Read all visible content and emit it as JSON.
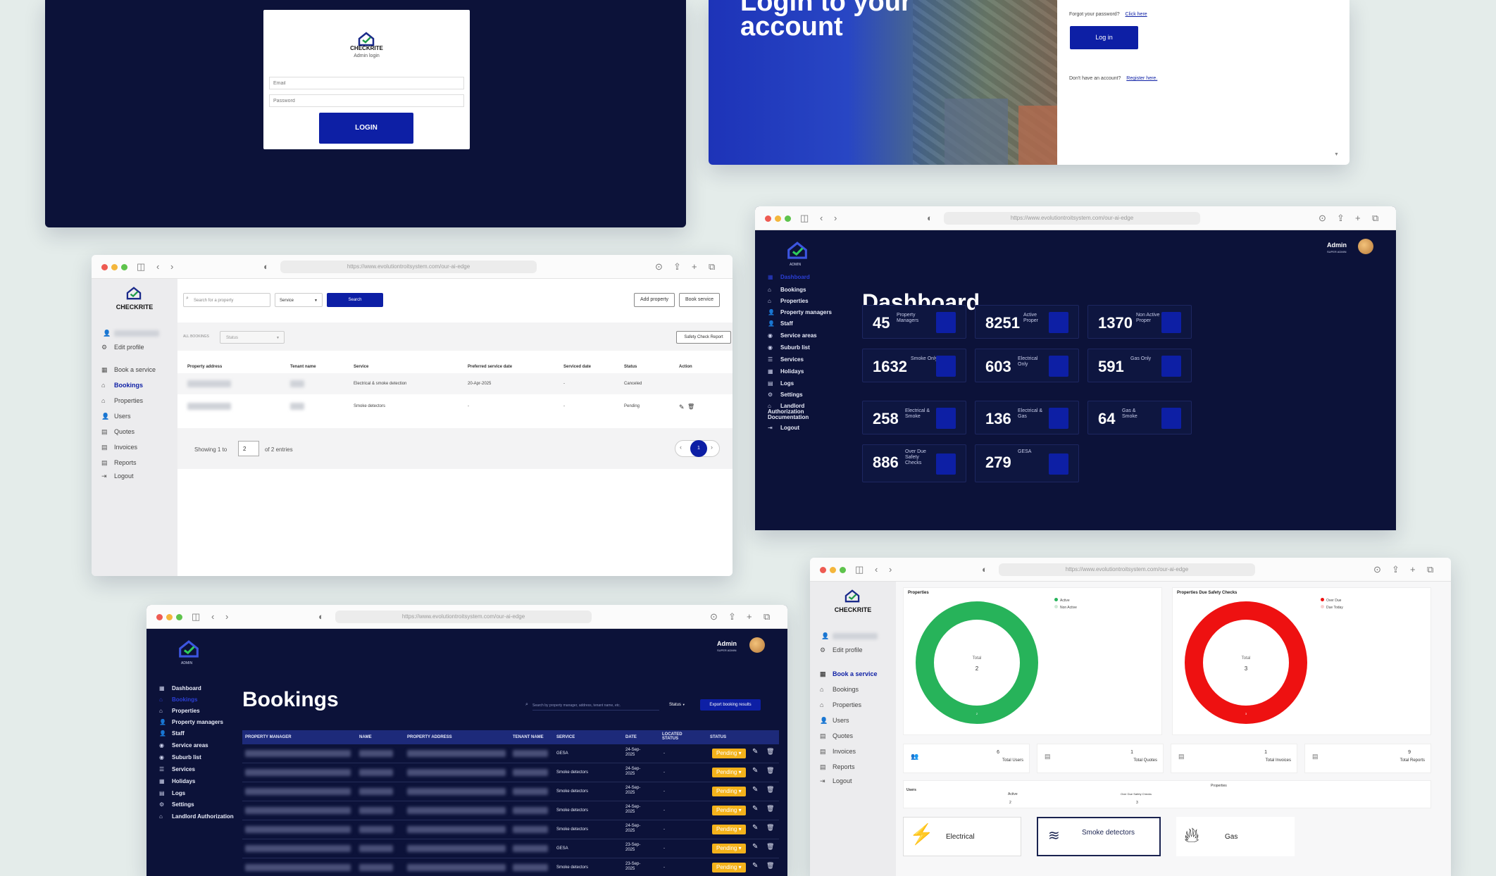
{
  "admin_login": {
    "brand": "CHECKRITE",
    "subtitle": "Admin login",
    "email_placeholder": "Email",
    "password_placeholder": "Password",
    "login_button": "LOGIN"
  },
  "user_login": {
    "headline_line1": "Login to your",
    "headline_line2": "account",
    "forgot_text": "Forgot your password?",
    "forgot_link": "Click here",
    "login_button": "Log in",
    "register_text": "Don't have an account?",
    "register_link": "Register here."
  },
  "dashboard": {
    "url": "https://www.evolutiontroitsystem.com/our-ai-edge",
    "admin_label": "ADMIN",
    "user_name": "Admin",
    "user_role": "SUPER ADMIN",
    "title": "Dashboard",
    "nav": [
      {
        "label": "Dashboard",
        "icon": "calendar-icon"
      },
      {
        "label": "Bookings",
        "icon": "house-icon"
      },
      {
        "label": "Properties",
        "icon": "house-icon"
      },
      {
        "label": "Property managers",
        "icon": "user-icon"
      },
      {
        "label": "Staff",
        "icon": "user-icon"
      },
      {
        "label": "Service areas",
        "icon": "location-icon"
      },
      {
        "label": "Suburb list",
        "icon": "location-icon"
      },
      {
        "label": "Services",
        "icon": "list-icon"
      },
      {
        "label": "Holidays",
        "icon": "calendar-icon"
      },
      {
        "label": "Logs",
        "icon": "document-icon"
      },
      {
        "label": "Settings",
        "icon": "gear-icon"
      },
      {
        "label": "Landlord Authorization Documentation",
        "icon": "house-icon"
      },
      {
        "label": "Logout",
        "icon": "logout-icon"
      }
    ],
    "stats": [
      {
        "value": "45",
        "label": "Property Managers"
      },
      {
        "value": "8251",
        "label": "Active Proper"
      },
      {
        "value": "1370",
        "label": "Non Active Proper"
      },
      {
        "value": "1632",
        "label": "Smoke Only"
      },
      {
        "value": "603",
        "label": "Electrical Only"
      },
      {
        "value": "591",
        "label": "Gas Only"
      },
      {
        "value": "258",
        "label": "Electrical & Smoke"
      },
      {
        "value": "136",
        "label": "Electrical & Gas"
      },
      {
        "value": "64",
        "label": "Gas & Smoke"
      },
      {
        "value": "886",
        "label": "Over Due Safety Checks"
      },
      {
        "value": "279",
        "label": "GESA"
      }
    ]
  },
  "properties_page": {
    "url": "https://www.evolutiontroitsystem.com/our-ai-edge",
    "brand": "CHECKRITE",
    "nav": [
      {
        "label": "Edit profile",
        "icon": "gear-icon"
      },
      {
        "label": "Book a service",
        "icon": "calendar-icon"
      },
      {
        "label": "Bookings",
        "icon": "house-icon"
      },
      {
        "label": "Properties",
        "icon": "house-icon"
      },
      {
        "label": "Users",
        "icon": "user-icon"
      },
      {
        "label": "Quotes",
        "icon": "document-icon"
      },
      {
        "label": "Invoices",
        "icon": "document-icon"
      },
      {
        "label": "Reports",
        "icon": "document-icon"
      },
      {
        "label": "Logout",
        "icon": "logout-icon"
      }
    ],
    "search_placeholder": "Search for a property",
    "service_select": "Service",
    "search_button": "Search",
    "add_property": "Add property",
    "book_service": "Book service",
    "all_bookings": "ALL BOOKINGS",
    "status_select": "Status",
    "safety_report": "Safety Check Report",
    "columns": [
      "Property address",
      "Tenant name",
      "Service",
      "Preferred service date",
      "Serviced date",
      "Status",
      "Action"
    ],
    "rows": [
      {
        "service": "Electrical & smoke detection",
        "preferred": "20-Apr-2025",
        "serviced": "-",
        "status": "Canceled"
      },
      {
        "service": "Smoke detectors",
        "preferred": "-",
        "serviced": "-",
        "status": "Pending"
      }
    ],
    "showing_prefix": "Showing 1 to",
    "showing_value": "2",
    "showing_suffix": "of 2 entries",
    "page": "1"
  },
  "bookings_page": {
    "url": "https://www.evolutiontroitsystem.com/our-ai-edge",
    "admin_label": "ADMIN",
    "user_name": "Admin",
    "user_role": "SUPER ADMIN",
    "title": "Bookings",
    "search_placeholder": "Search by property manager, address, tenant name, etc.",
    "status_select": "Status",
    "export_button": "Export booking results",
    "nav": [
      {
        "label": "Dashboard",
        "icon": "calendar-icon"
      },
      {
        "label": "Bookings",
        "icon": "house-icon"
      },
      {
        "label": "Properties",
        "icon": "house-icon"
      },
      {
        "label": "Property managers",
        "icon": "user-icon"
      },
      {
        "label": "Staff",
        "icon": "user-icon"
      },
      {
        "label": "Service areas",
        "icon": "location-icon"
      },
      {
        "label": "Suburb list",
        "icon": "location-icon"
      },
      {
        "label": "Services",
        "icon": "list-icon"
      },
      {
        "label": "Holidays",
        "icon": "calendar-icon"
      },
      {
        "label": "Logs",
        "icon": "document-icon"
      },
      {
        "label": "Settings",
        "icon": "gear-icon"
      },
      {
        "label": "Landlord Authorization",
        "icon": "house-icon"
      }
    ],
    "columns": [
      "PROPERTY MANAGER",
      "NAME",
      "PROPERTY ADDRESS",
      "TENANT NAME",
      "SERVICE",
      "DATE",
      "LOCATED STATUS",
      "STATUS"
    ],
    "rows": [
      {
        "service": "GESA",
        "date": "24-Sep-2025",
        "located": "-",
        "status": "Pending"
      },
      {
        "service": "Smoke detectors",
        "date": "24-Sep-2025",
        "located": "-",
        "status": "Pending"
      },
      {
        "service": "Smoke detectors",
        "date": "24-Sep-2025",
        "located": "-",
        "status": "Pending"
      },
      {
        "service": "Smoke detectors",
        "date": "24-Sep-2025",
        "located": "-",
        "status": "Pending"
      },
      {
        "service": "Smoke detectors",
        "date": "24-Sep-2025",
        "located": "-",
        "status": "Pending"
      },
      {
        "service": "GESA",
        "date": "23-Sep-2025",
        "located": "-",
        "status": "Pending"
      },
      {
        "service": "Smoke detectors",
        "date": "23-Sep-2025",
        "located": "-",
        "status": "Pending"
      }
    ]
  },
  "user_dashboard": {
    "url": "https://www.evolutiontroitsystem.com/our-ai-edge",
    "brand": "CHECKRITE",
    "nav": [
      {
        "label": "Edit profile",
        "icon": "gear-icon"
      },
      {
        "label": "Book a service",
        "icon": "calendar-icon"
      },
      {
        "label": "Bookings",
        "icon": "house-icon"
      },
      {
        "label": "Properties",
        "icon": "house-icon"
      },
      {
        "label": "Users",
        "icon": "user-icon"
      },
      {
        "label": "Quotes",
        "icon": "document-icon"
      },
      {
        "label": "Invoices",
        "icon": "document-icon"
      },
      {
        "label": "Reports",
        "icon": "document-icon"
      },
      {
        "label": "Logout",
        "icon": "logout-icon"
      }
    ],
    "chart1": {
      "title": "Properties",
      "legend": [
        "Active",
        "Non Active"
      ],
      "center_label": "Total",
      "center_value": "2",
      "arc_label": "2",
      "colors": [
        "#27b35a",
        "#cfe8d6"
      ]
    },
    "chart2": {
      "title": "Properties Due Safety Checks",
      "legend": [
        "Over Due",
        "Due Today"
      ],
      "center_label": "Total",
      "center_value": "3",
      "arc_label": "3",
      "colors": [
        "#ee1111",
        "#f7d0d0"
      ]
    },
    "totals": [
      {
        "value": "6",
        "label": "Total Users"
      },
      {
        "value": "1",
        "label": "Total Quotes"
      },
      {
        "value": "1",
        "label": "Total Invoices"
      },
      {
        "value": "9",
        "label": "Total Reports"
      }
    ],
    "table_users": "Users",
    "table_properties": "Properties",
    "table_active": "Active",
    "table_overdue": "Over Due Safety Checks",
    "table_active_val": "2",
    "table_overdue_val": "3",
    "services": [
      "Electrical",
      "Smoke detectors",
      "Gas"
    ]
  }
}
